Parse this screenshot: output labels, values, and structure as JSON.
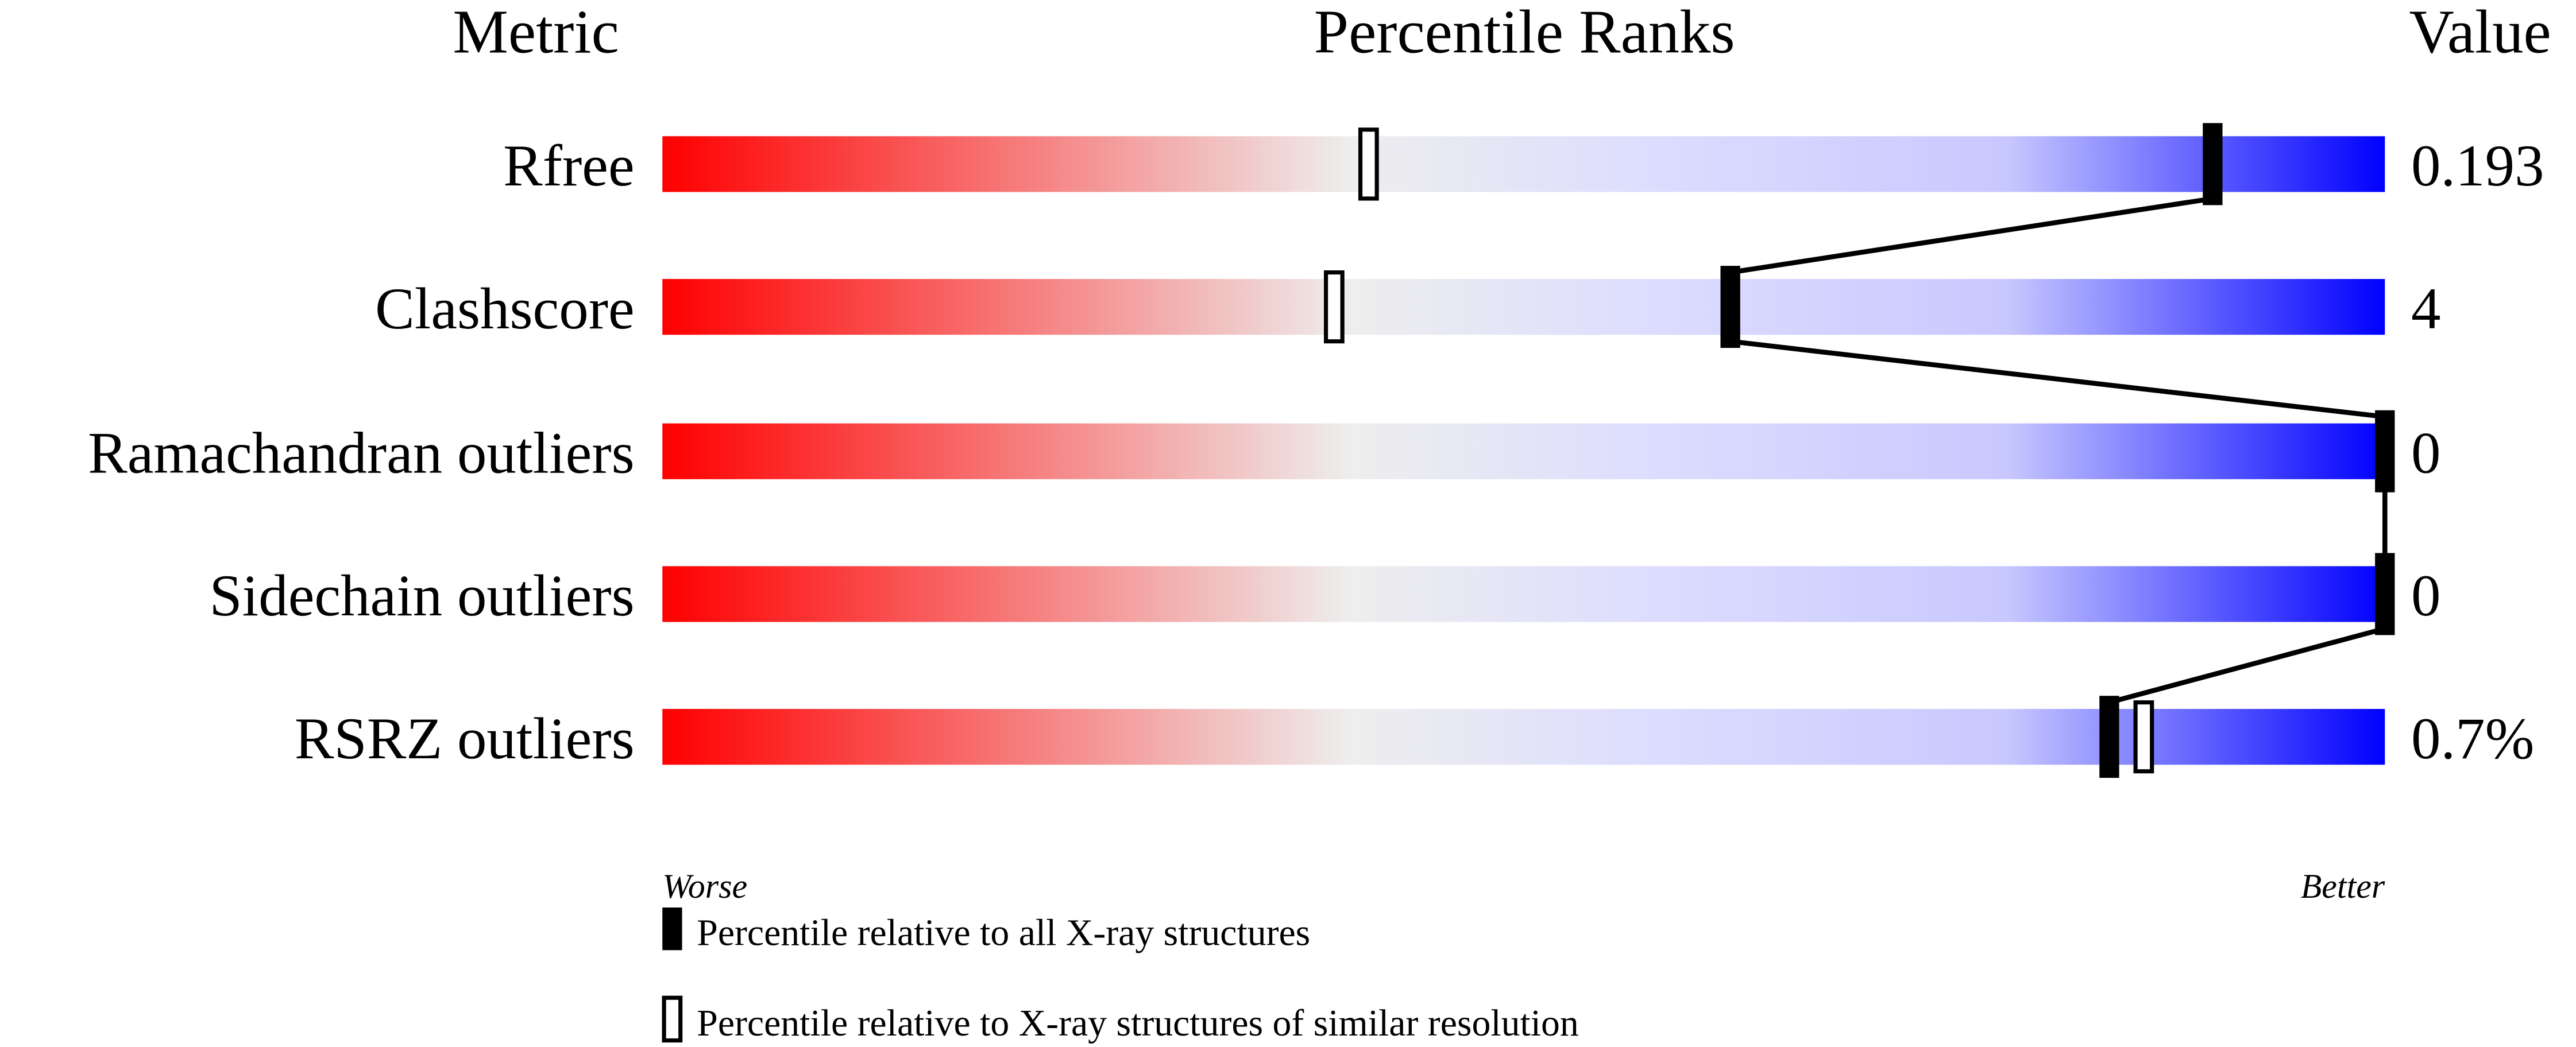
{
  "chart_data": {
    "type": "percentile-bar",
    "headers": {
      "metric": "Metric",
      "ranks": "Percentile Ranks",
      "value": "Value"
    },
    "xlim": [
      0,
      100
    ],
    "metrics": [
      {
        "name": "Rfree",
        "value": "0.193",
        "percentile_all": 90,
        "percentile_similar": 41
      },
      {
        "name": "Clashscore",
        "value": "4",
        "percentile_all": 62,
        "percentile_similar": 39
      },
      {
        "name": "Ramachandran outliers",
        "value": "0",
        "percentile_all": 100,
        "percentile_similar": null
      },
      {
        "name": "Sidechain outliers",
        "value": "0",
        "percentile_all": 100,
        "percentile_similar": null
      },
      {
        "name": "RSRZ outliers",
        "value": "0.7%",
        "percentile_all": 84,
        "percentile_similar": 86
      }
    ],
    "axis_labels": {
      "worse": "Worse",
      "better": "Better"
    },
    "legend": {
      "filled": "Percentile relative to all X-ray structures",
      "open": "Percentile relative to X-ray structures of similar resolution"
    },
    "colors": {
      "worse": "#ff0000",
      "middle": "#eeeeee",
      "light_blue": "#d8d8ff",
      "better": "#0000ff",
      "marker": "#000000"
    }
  }
}
